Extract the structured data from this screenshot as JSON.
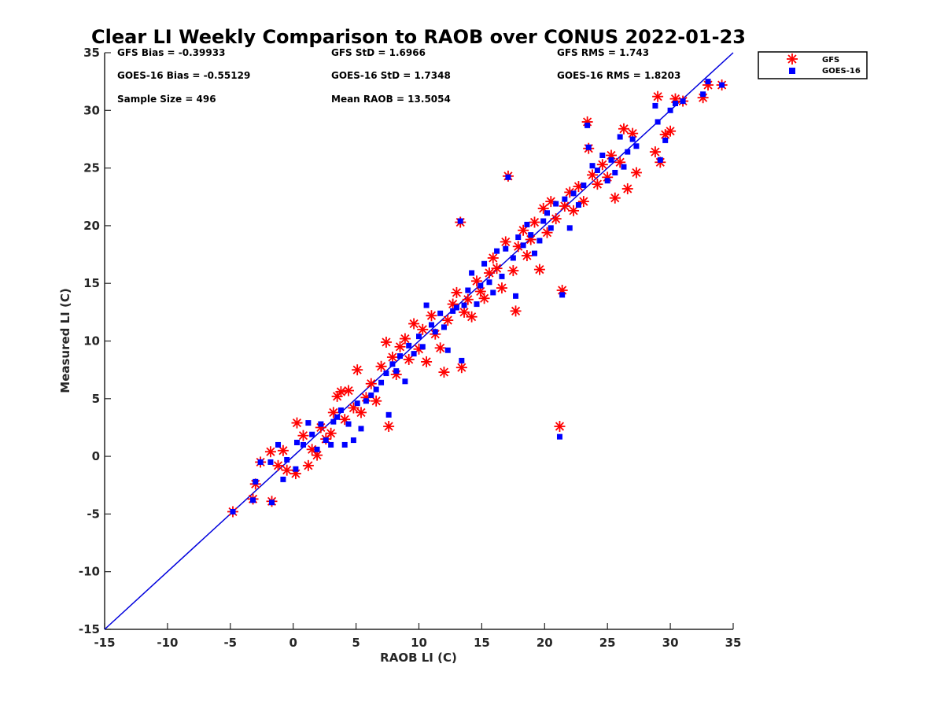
{
  "chart_data": {
    "type": "scatter",
    "title": "Clear LI Weekly Comparison to RAOB over CONUS 2022-01-23",
    "xlabel": "RAOB LI (C)",
    "ylabel": "Measured LI (C)",
    "xlim": [
      -15,
      35
    ],
    "ylim": [
      -15,
      35
    ],
    "xticks": [
      -15,
      -10,
      -5,
      0,
      5,
      10,
      15,
      20,
      25,
      30,
      35
    ],
    "yticks": [
      -15,
      -10,
      -5,
      0,
      5,
      10,
      15,
      20,
      25,
      30,
      35
    ],
    "reference_line": {
      "from": [
        -15,
        -15
      ],
      "to": [
        35,
        35
      ],
      "color": "#0000dd"
    },
    "stats": [
      "GFS Bias = -0.39933",
      "GFS StD = 1.6966",
      "GFS RMS = 1.743",
      "GOES-16 Bias = -0.55129",
      "GOES-16 StD = 1.7348",
      "GOES-16 RMS = 1.8203",
      "Sample Size = 496",
      "Mean RAOB = 13.5054"
    ],
    "legend": {
      "position": "outside-top-right",
      "entries": [
        "GFS",
        "GOES-16"
      ]
    },
    "series": [
      {
        "name": "GFS",
        "marker": "asterisk",
        "color": "#ff0000",
        "points": [
          [
            -4.8,
            -4.8
          ],
          [
            -3.2,
            -3.7
          ],
          [
            -2.6,
            -0.5
          ],
          [
            -3.0,
            -2.4
          ],
          [
            -1.7,
            -3.9
          ],
          [
            -1.8,
            0.4
          ],
          [
            -1.2,
            -0.8
          ],
          [
            -0.8,
            0.5
          ],
          [
            -0.5,
            -1.2
          ],
          [
            0.2,
            -1.5
          ],
          [
            0.3,
            2.9
          ],
          [
            0.8,
            1.8
          ],
          [
            1.2,
            -0.8
          ],
          [
            1.5,
            0.6
          ],
          [
            1.9,
            0.1
          ],
          [
            2.2,
            2.5
          ],
          [
            2.6,
            1.5
          ],
          [
            3.0,
            2.0
          ],
          [
            3.2,
            3.8
          ],
          [
            3.5,
            5.2
          ],
          [
            3.8,
            5.6
          ],
          [
            4.1,
            3.2
          ],
          [
            4.4,
            5.7
          ],
          [
            4.8,
            4.2
          ],
          [
            5.1,
            7.5
          ],
          [
            5.4,
            3.8
          ],
          [
            5.8,
            5.1
          ],
          [
            6.2,
            6.3
          ],
          [
            6.6,
            4.8
          ],
          [
            7.0,
            7.8
          ],
          [
            7.4,
            9.9
          ],
          [
            7.6,
            2.6
          ],
          [
            7.9,
            8.6
          ],
          [
            8.2,
            7.1
          ],
          [
            8.5,
            9.5
          ],
          [
            8.9,
            10.2
          ],
          [
            9.2,
            8.4
          ],
          [
            9.6,
            11.5
          ],
          [
            10.0,
            9.3
          ],
          [
            10.3,
            11.0
          ],
          [
            10.6,
            8.2
          ],
          [
            11.0,
            12.2
          ],
          [
            11.3,
            10.6
          ],
          [
            11.7,
            9.4
          ],
          [
            12.0,
            7.3
          ],
          [
            12.3,
            11.8
          ],
          [
            12.7,
            13.2
          ],
          [
            13.0,
            14.2
          ],
          [
            13.4,
            7.7
          ],
          [
            13.6,
            12.5
          ],
          [
            13.9,
            13.6
          ],
          [
            14.2,
            12.1
          ],
          [
            14.6,
            15.2
          ],
          [
            14.9,
            14.3
          ],
          [
            15.2,
            13.7
          ],
          [
            15.6,
            15.9
          ],
          [
            15.9,
            17.2
          ],
          [
            16.2,
            16.3
          ],
          [
            16.6,
            14.6
          ],
          [
            16.9,
            18.6
          ],
          [
            17.1,
            24.3
          ],
          [
            17.5,
            16.1
          ],
          [
            17.7,
            12.6
          ],
          [
            17.9,
            18.2
          ],
          [
            18.3,
            19.6
          ],
          [
            18.6,
            17.4
          ],
          [
            18.9,
            18.8
          ],
          [
            19.2,
            20.3
          ],
          [
            19.6,
            16.2
          ],
          [
            19.9,
            21.5
          ],
          [
            20.2,
            19.4
          ],
          [
            20.5,
            22.1
          ],
          [
            20.9,
            20.6
          ],
          [
            21.2,
            2.6
          ],
          [
            21.4,
            14.4
          ],
          [
            21.6,
            21.7
          ],
          [
            22.0,
            22.9
          ],
          [
            22.3,
            21.3
          ],
          [
            22.7,
            23.4
          ],
          [
            23.1,
            22.1
          ],
          [
            23.4,
            29.0
          ],
          [
            23.5,
            26.7
          ],
          [
            23.8,
            24.4
          ],
          [
            24.2,
            23.6
          ],
          [
            24.6,
            25.3
          ],
          [
            25.0,
            24.2
          ],
          [
            25.3,
            26.1
          ],
          [
            25.6,
            22.4
          ],
          [
            26.0,
            25.5
          ],
          [
            26.3,
            28.4
          ],
          [
            26.6,
            23.2
          ],
          [
            27.0,
            28.0
          ],
          [
            27.3,
            24.6
          ],
          [
            28.8,
            26.4
          ],
          [
            29.0,
            31.2
          ],
          [
            29.2,
            25.5
          ],
          [
            29.6,
            27.9
          ],
          [
            30.0,
            28.2
          ],
          [
            30.4,
            31.0
          ],
          [
            31.0,
            30.8
          ],
          [
            32.6,
            31.1
          ],
          [
            33.0,
            32.2
          ],
          [
            34.1,
            32.2
          ],
          [
            13.3,
            20.3
          ]
        ]
      },
      {
        "name": "GOES-16",
        "marker": "square",
        "color": "#0000ff",
        "points": [
          [
            -4.8,
            -4.8
          ],
          [
            -3.2,
            -3.8
          ],
          [
            -2.6,
            -0.5
          ],
          [
            -3.0,
            -2.2
          ],
          [
            -1.7,
            -4.0
          ],
          [
            -1.8,
            -0.5
          ],
          [
            -1.2,
            1.0
          ],
          [
            -0.8,
            -2.0
          ],
          [
            -0.5,
            -0.3
          ],
          [
            0.2,
            -1.1
          ],
          [
            0.3,
            1.2
          ],
          [
            0.8,
            1.0
          ],
          [
            1.2,
            2.9
          ],
          [
            1.5,
            1.9
          ],
          [
            1.9,
            0.6
          ],
          [
            2.2,
            2.8
          ],
          [
            2.6,
            1.4
          ],
          [
            3.0,
            1.0
          ],
          [
            3.2,
            3.0
          ],
          [
            3.5,
            3.4
          ],
          [
            3.8,
            4.0
          ],
          [
            4.1,
            1.0
          ],
          [
            4.4,
            2.8
          ],
          [
            4.8,
            1.4
          ],
          [
            5.1,
            4.6
          ],
          [
            5.4,
            2.4
          ],
          [
            5.8,
            4.8
          ],
          [
            6.2,
            5.3
          ],
          [
            6.6,
            5.8
          ],
          [
            7.0,
            6.4
          ],
          [
            7.4,
            7.2
          ],
          [
            7.6,
            3.6
          ],
          [
            7.9,
            8.0
          ],
          [
            8.2,
            7.4
          ],
          [
            8.5,
            8.7
          ],
          [
            8.9,
            6.5
          ],
          [
            9.2,
            9.6
          ],
          [
            9.6,
            8.9
          ],
          [
            10.0,
            10.4
          ],
          [
            10.3,
            9.5
          ],
          [
            10.6,
            13.1
          ],
          [
            11.0,
            11.4
          ],
          [
            11.3,
            10.8
          ],
          [
            11.7,
            12.4
          ],
          [
            12.0,
            11.2
          ],
          [
            12.3,
            9.2
          ],
          [
            12.7,
            12.6
          ],
          [
            13.0,
            12.9
          ],
          [
            13.4,
            8.3
          ],
          [
            13.6,
            13.1
          ],
          [
            13.9,
            14.4
          ],
          [
            14.2,
            15.9
          ],
          [
            14.6,
            13.2
          ],
          [
            14.9,
            14.8
          ],
          [
            15.2,
            16.7
          ],
          [
            15.6,
            15.1
          ],
          [
            15.9,
            14.2
          ],
          [
            16.2,
            17.8
          ],
          [
            16.6,
            15.6
          ],
          [
            16.9,
            18.0
          ],
          [
            17.1,
            24.2
          ],
          [
            17.5,
            17.2
          ],
          [
            17.7,
            13.9
          ],
          [
            17.9,
            19.0
          ],
          [
            18.3,
            18.3
          ],
          [
            18.6,
            20.1
          ],
          [
            18.9,
            19.2
          ],
          [
            19.2,
            17.6
          ],
          [
            19.6,
            18.7
          ],
          [
            19.9,
            20.4
          ],
          [
            20.2,
            21.1
          ],
          [
            20.5,
            19.8
          ],
          [
            20.9,
            21.9
          ],
          [
            21.2,
            1.7
          ],
          [
            21.4,
            14.0
          ],
          [
            21.6,
            22.3
          ],
          [
            22.0,
            19.8
          ],
          [
            22.3,
            22.8
          ],
          [
            22.7,
            21.8
          ],
          [
            23.1,
            23.5
          ],
          [
            23.4,
            28.7
          ],
          [
            23.5,
            26.8
          ],
          [
            23.8,
            25.2
          ],
          [
            24.2,
            24.8
          ],
          [
            24.6,
            26.1
          ],
          [
            25.0,
            23.9
          ],
          [
            25.3,
            25.7
          ],
          [
            25.6,
            24.6
          ],
          [
            26.0,
            27.7
          ],
          [
            26.3,
            25.1
          ],
          [
            26.6,
            26.4
          ],
          [
            27.0,
            27.5
          ],
          [
            27.3,
            26.9
          ],
          [
            28.8,
            30.4
          ],
          [
            29.0,
            29.0
          ],
          [
            29.2,
            25.7
          ],
          [
            29.6,
            27.4
          ],
          [
            30.0,
            30.0
          ],
          [
            30.4,
            30.6
          ],
          [
            31.0,
            30.8
          ],
          [
            32.6,
            31.4
          ],
          [
            33.0,
            32.5
          ],
          [
            34.1,
            32.2
          ],
          [
            13.3,
            20.4
          ]
        ]
      }
    ]
  }
}
